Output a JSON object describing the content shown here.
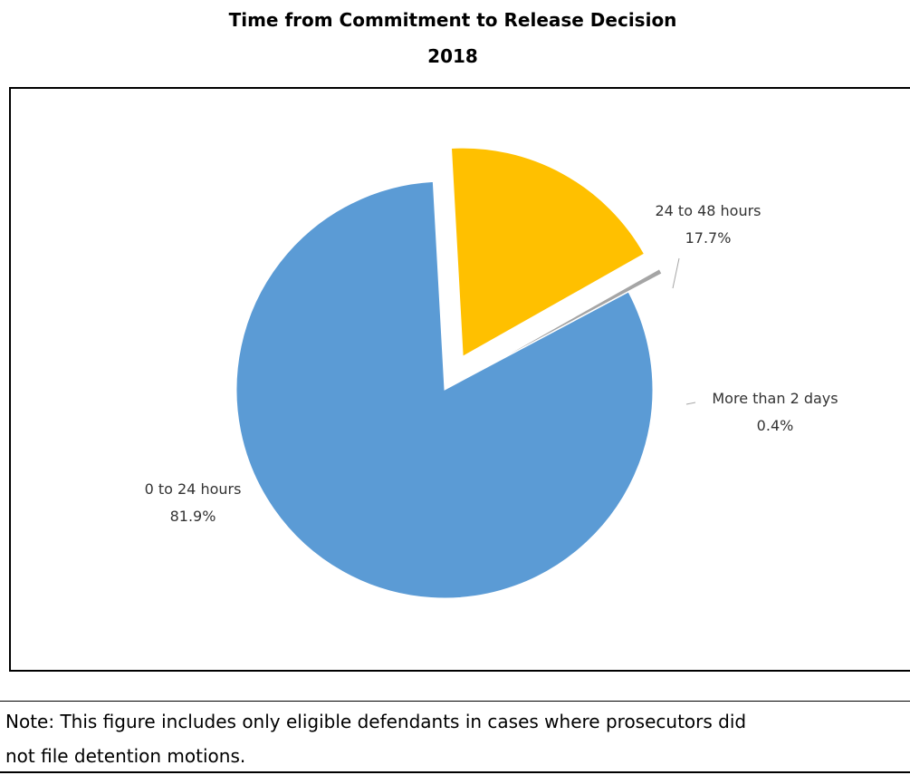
{
  "chart_data": {
    "type": "pie",
    "title": "Time from Commitment to Release Decision",
    "subtitle": "2018",
    "slices": [
      {
        "label": "0 to 24 hours",
        "value": 81.9,
        "value_label": "81.9%",
        "color": "#5B9BD5"
      },
      {
        "label": "24 to 48 hours",
        "value": 17.7,
        "value_label": "17.7%",
        "color": "#FFC000"
      },
      {
        "label": "More than 2 days",
        "value": 0.4,
        "value_label": "0.4%",
        "color": "#A5A5A5"
      }
    ]
  },
  "note": {
    "line1": "Note: This figure includes only eligible defendants in cases where prosecutors did",
    "line2": "not file detention motions."
  }
}
